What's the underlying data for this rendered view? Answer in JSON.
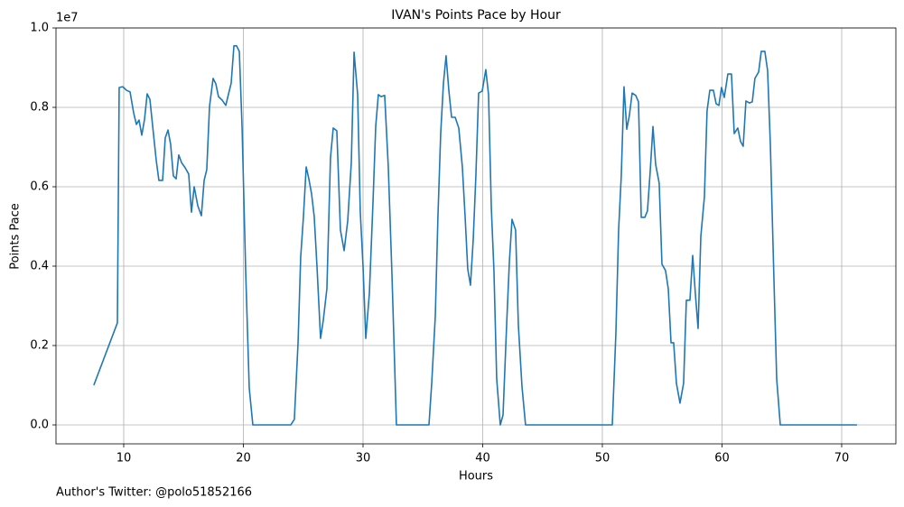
{
  "chart_data": {
    "type": "line",
    "title": "IVAN's Points Pace by Hour",
    "x_label": "Hours",
    "y_label": "Points Pace",
    "y_offset_label": "1e7",
    "footnote": "Author's Twitter: @polo51852166",
    "x": [
      7.5,
      9.47,
      9.62,
      9.92,
      10.23,
      10.53,
      10.83,
      11.06,
      11.28,
      11.51,
      11.74,
      11.96,
      12.19,
      12.42,
      12.72,
      12.94,
      13.25,
      13.47,
      13.7,
      13.92,
      14.15,
      14.38,
      14.6,
      14.83,
      15.13,
      15.43,
      15.66,
      15.89,
      16.19,
      16.49,
      16.72,
      16.94,
      17.17,
      17.47,
      17.7,
      17.92,
      18.23,
      18.53,
      18.98,
      19.21,
      19.43,
      19.66,
      19.89,
      20.19,
      20.49,
      20.79,
      23.96,
      24.26,
      24.57,
      24.79,
      25.02,
      25.25,
      25.47,
      25.7,
      25.92,
      26.15,
      26.45,
      26.68,
      26.98,
      27.28,
      27.51,
      27.81,
      28.11,
      28.42,
      28.72,
      29.02,
      29.25,
      29.55,
      29.77,
      30.0,
      30.23,
      30.53,
      30.83,
      31.06,
      31.28,
      31.51,
      31.81,
      32.11,
      32.42,
      32.79,
      35.51,
      35.74,
      36.04,
      36.26,
      36.49,
      36.72,
      36.94,
      37.17,
      37.4,
      37.7,
      38.0,
      38.3,
      38.53,
      38.75,
      38.98,
      39.21,
      39.43,
      39.66,
      39.96,
      40.26,
      40.49,
      40.72,
      40.94,
      41.17,
      41.47,
      41.7,
      42.0,
      42.23,
      42.45,
      42.75,
      42.98,
      43.28,
      43.58,
      50.83,
      51.13,
      51.36,
      51.58,
      51.81,
      52.04,
      52.26,
      52.49,
      52.79,
      53.02,
      53.25,
      53.55,
      53.77,
      54.0,
      54.23,
      54.45,
      54.75,
      54.98,
      55.28,
      55.51,
      55.74,
      55.96,
      56.19,
      56.49,
      56.79,
      57.02,
      57.32,
      57.55,
      57.77,
      58.0,
      58.23,
      58.53,
      58.75,
      58.98,
      59.28,
      59.51,
      59.74,
      59.96,
      60.19,
      60.49,
      60.79,
      61.02,
      61.32,
      61.55,
      61.77,
      62.0,
      62.3,
      62.53,
      62.75,
      63.06,
      63.28,
      63.58,
      63.81,
      64.04,
      64.34,
      64.57,
      64.87,
      71.28
    ],
    "series": [
      {
        "name": "Points Pace",
        "color": "#1f77b4",
        "values": [
          1000000,
          2570000,
          8500000,
          8520000,
          8430000,
          8390000,
          7860000,
          7570000,
          7680000,
          7300000,
          7700000,
          8340000,
          8200000,
          7520000,
          6660000,
          6160000,
          6160000,
          7230000,
          7430000,
          7070000,
          6270000,
          6200000,
          6800000,
          6610000,
          6480000,
          6320000,
          5360000,
          6000000,
          5520000,
          5270000,
          6160000,
          6430000,
          8020000,
          8730000,
          8590000,
          8270000,
          8180000,
          8050000,
          8610000,
          9550000,
          9550000,
          9410000,
          7520000,
          3890000,
          930000,
          0,
          0,
          140000,
          2070000,
          4230000,
          5250000,
          6500000,
          6200000,
          5820000,
          5250000,
          4000000,
          2180000,
          2640000,
          3430000,
          6730000,
          7480000,
          7410000,
          4910000,
          4390000,
          5140000,
          6610000,
          9390000,
          8320000,
          5360000,
          4000000,
          2180000,
          3320000,
          5590000,
          7520000,
          8320000,
          8270000,
          8300000,
          6500000,
          3770000,
          0,
          0,
          1050000,
          2750000,
          5250000,
          7340000,
          8610000,
          9300000,
          8430000,
          7750000,
          7750000,
          7480000,
          6500000,
          5250000,
          3930000,
          3520000,
          4680000,
          6270000,
          8360000,
          8410000,
          8950000,
          8320000,
          5480000,
          3890000,
          1160000,
          0,
          250000,
          2520000,
          4110000,
          5180000,
          4910000,
          2520000,
          980000,
          0,
          0,
          2300000,
          4910000,
          6270000,
          8520000,
          7450000,
          7800000,
          8360000,
          8300000,
          8140000,
          5230000,
          5230000,
          5390000,
          6390000,
          7520000,
          6570000,
          6090000,
          4050000,
          3890000,
          3430000,
          2070000,
          2070000,
          1050000,
          550000,
          1050000,
          3140000,
          3140000,
          4270000,
          3320000,
          2430000,
          4750000,
          5750000,
          7910000,
          8430000,
          8430000,
          8090000,
          8050000,
          8500000,
          8250000,
          8840000,
          8840000,
          7340000,
          7480000,
          7140000,
          7020000,
          8160000,
          8110000,
          8140000,
          8730000,
          8890000,
          9410000,
          9410000,
          8930000,
          7070000,
          3660000,
          1160000,
          0,
          0
        ]
      }
    ],
    "xlim": [
      4.34,
      74.53
    ],
    "ylim": [
      -477000,
      10000000
    ],
    "xticks": [
      10,
      20,
      30,
      40,
      50,
      60,
      70
    ],
    "yticks": [
      {
        "value": 0,
        "label": "0.0"
      },
      {
        "value": 2000000,
        "label": "0.2"
      },
      {
        "value": 4000000,
        "label": "0.4"
      },
      {
        "value": 6000000,
        "label": "0.6"
      },
      {
        "value": 8000000,
        "label": "0.8"
      },
      {
        "value": 10000000,
        "label": "1.0"
      }
    ],
    "grid": true
  }
}
